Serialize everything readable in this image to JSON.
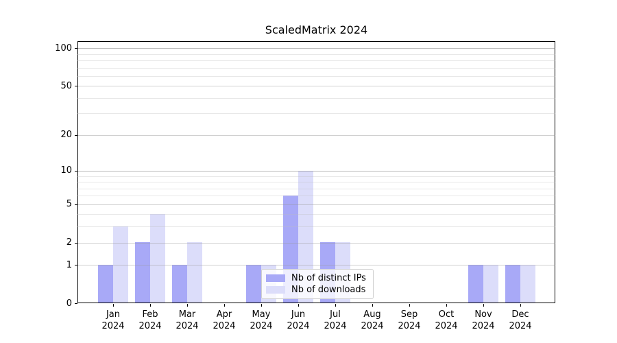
{
  "chart_data": {
    "type": "bar",
    "title": "ScaledMatrix 2024",
    "categories": [
      "Jan\n2024",
      "Feb\n2024",
      "Mar\n2024",
      "Apr\n2024",
      "May\n2024",
      "Jun\n2024",
      "Jul\n2024",
      "Aug\n2024",
      "Sep\n2024",
      "Oct\n2024",
      "Nov\n2024",
      "Dec\n2024"
    ],
    "series": [
      {
        "name": "Nb of distinct IPs",
        "color": "#a8a9f7",
        "values": [
          1,
          2,
          1,
          0,
          1,
          6,
          2,
          0,
          0,
          0,
          1,
          1
        ]
      },
      {
        "name": "Nb of downloads",
        "color": "#dcddfa",
        "values": [
          3,
          4,
          2,
          0,
          1,
          10,
          2,
          0,
          0,
          0,
          1,
          1
        ]
      }
    ],
    "xlabel": "",
    "ylabel": "",
    "y_axis": {
      "scale": "log10(1+y)",
      "ticks": [
        0,
        1,
        2,
        5,
        10,
        20,
        50,
        100
      ],
      "minor_ticks": [
        3,
        4,
        6,
        7,
        8,
        9,
        30,
        40,
        60,
        70,
        80,
        90
      ],
      "ylim": [
        0,
        115
      ],
      "grid": true
    },
    "legend": {
      "position": "lower center",
      "labels": [
        "Nb of distinct IPs",
        "Nb of downloads"
      ]
    },
    "colors": {
      "background": "#ffffff",
      "spine": "#000000",
      "text": "#000000",
      "grid_major": "#c9c9c9",
      "grid_minor": "#e9e9e9",
      "legend_border": "#cfcfcf"
    }
  }
}
